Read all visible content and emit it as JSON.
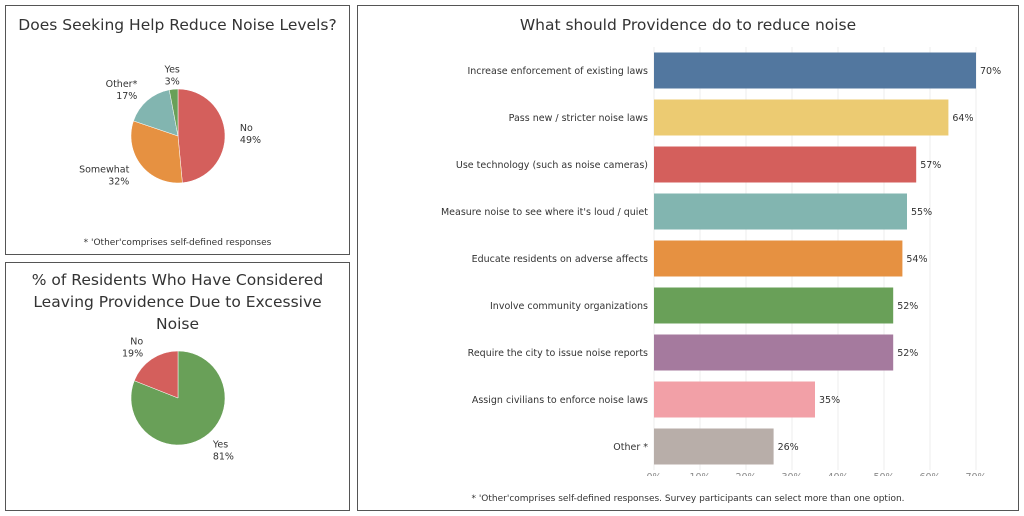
{
  "chart_data": [
    {
      "type": "pie",
      "title": "Does Seeking Help Reduce Noise Levels?",
      "slices": [
        {
          "label": "No",
          "value": 49,
          "display": "49%",
          "color": "#d45f5c"
        },
        {
          "label": "Somewhat",
          "value": 32,
          "display": "32%",
          "color": "#e69141"
        },
        {
          "label": "Other*",
          "value": 17,
          "display": "17%",
          "color": "#82b5b0"
        },
        {
          "label": "Yes",
          "value": 3,
          "display": "3%",
          "color": "#69a058"
        }
      ],
      "note": "* 'Other'comprises self-defined responses"
    },
    {
      "type": "pie",
      "title": "% of Residents Who Have Considered Leaving Providence Due to Excessive Noise",
      "slices": [
        {
          "label": "Yes",
          "value": 81,
          "display": "81%",
          "color": "#69a058"
        },
        {
          "label": "No",
          "value": 19,
          "display": "19%",
          "color": "#d45f5c"
        }
      ]
    },
    {
      "type": "bar",
      "orientation": "horizontal",
      "title": "What should Providence do to reduce noise",
      "categories": [
        "Increase enforcement of existing laws",
        "Pass new / stricter noise laws",
        "Use technology (such as noise cameras)",
        "Measure noise to see where it's loud / quiet",
        "Educate residents on adverse affects",
        "Involve community organizations",
        "Require the city to issue noise reports",
        "Assign civilians to enforce noise laws",
        "Other *"
      ],
      "values": [
        70,
        64,
        57,
        55,
        54,
        52,
        52,
        35,
        26
      ],
      "labels": [
        "70%",
        "64%",
        "57%",
        "55%",
        "54%",
        "52%",
        "52%",
        "35%",
        "26%"
      ],
      "colors": [
        "#52779f",
        "#eccb72",
        "#d45f5c",
        "#82b5b0",
        "#e69141",
        "#69a058",
        "#a57a9e",
        "#f2a0a7",
        "#b8aea9"
      ],
      "xticks": [
        "0%",
        "10%",
        "20%",
        "30%",
        "40%",
        "50%",
        "60%",
        "70%"
      ],
      "xlim": [
        0,
        76
      ],
      "grid": true,
      "note": "* 'Other'comprises self-defined responses. Survey participants can select more than one option."
    }
  ]
}
